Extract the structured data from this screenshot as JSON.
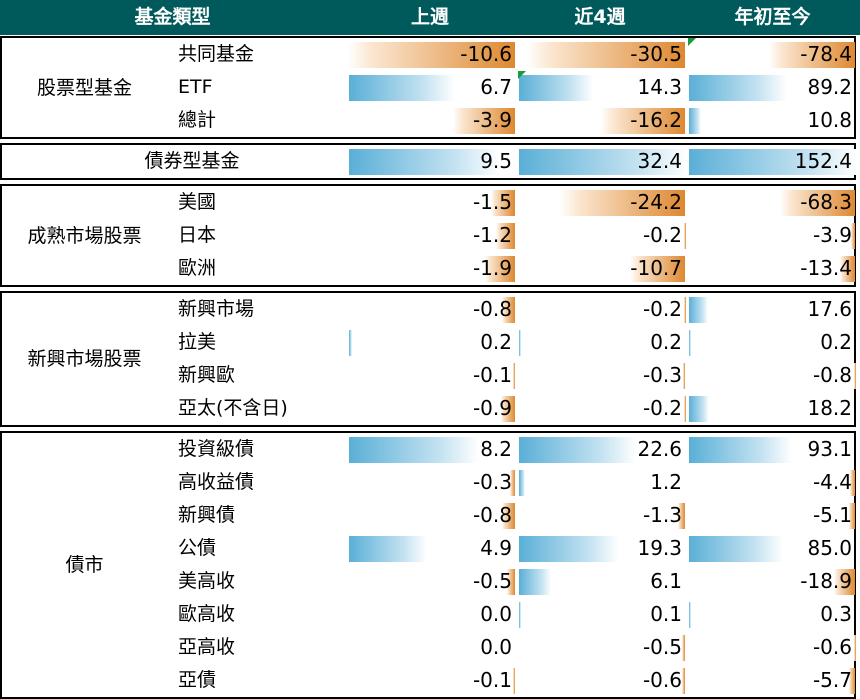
{
  "header": {
    "category": "基金類型",
    "col1": "上週",
    "col2": "近4週",
    "col3": "年初至今"
  },
  "colors": {
    "header_bg": "#005a5b",
    "negative_bar": "#dd8830",
    "positive_bar": "#5aafd7",
    "flag": "#1a9a38"
  },
  "groups": [
    {
      "label": "股票型基金",
      "rows": [
        {
          "name": "共同基金",
          "v1": "-10.6",
          "v2": "-30.5",
          "v3": "-78.4",
          "flag3": true
        },
        {
          "name": "ETF",
          "v1": "6.7",
          "v2": "14.3",
          "v3": "89.2",
          "flag2": true
        },
        {
          "name": "總計",
          "v1": "-3.9",
          "v2": "-16.2",
          "v3": "10.8"
        }
      ]
    },
    {
      "label": "債券型基金",
      "single": true,
      "rows": [
        {
          "name": "",
          "v1": "9.5",
          "v2": "32.4",
          "v3": "152.4"
        }
      ]
    },
    {
      "label": "成熟市場股票",
      "rows": [
        {
          "name": "美國",
          "v1": "-1.5",
          "v2": "-24.2",
          "v3": "-68.3"
        },
        {
          "name": "日本",
          "v1": "-1.2",
          "v2": "-0.2",
          "v3": "-3.9"
        },
        {
          "name": "歐洲",
          "v1": "-1.9",
          "v2": "-10.7",
          "v3": "-13.4"
        }
      ]
    },
    {
      "label": "新興市場股票",
      "rows": [
        {
          "name": "新興市場",
          "v1": "-0.8",
          "v2": "-0.2",
          "v3": "17.6"
        },
        {
          "name": "拉美",
          "v1": "0.2",
          "v2": "0.2",
          "v3": "0.2"
        },
        {
          "name": "新興歐",
          "v1": "-0.1",
          "v2": "-0.3",
          "v3": "-0.8"
        },
        {
          "name": "亞太(不含日)",
          "v1": "-0.9",
          "v2": "-0.2",
          "v3": "18.2"
        }
      ]
    },
    {
      "label": "債市",
      "rows": [
        {
          "name": "投資級債",
          "v1": "8.2",
          "v2": "22.6",
          "v3": "93.1"
        },
        {
          "name": "高收益債",
          "v1": "-0.3",
          "v2": "1.2",
          "v3": "-4.4"
        },
        {
          "name": "新興債",
          "v1": "-0.8",
          "v2": "-1.3",
          "v3": "-5.1"
        },
        {
          "name": "公債",
          "v1": "4.9",
          "v2": "19.3",
          "v3": "85.0"
        },
        {
          "name": "美高收",
          "v1": "-0.5",
          "v2": "6.1",
          "v3": "-18.9"
        },
        {
          "name": "歐高收",
          "v1": "0.0",
          "v2": "0.1",
          "v3": "0.3"
        },
        {
          "name": "亞高收",
          "v1": "0.0",
          "v2": "-0.5",
          "v3": "-0.6"
        },
        {
          "name": "亞債",
          "v1": "-0.1",
          "v2": "-0.6",
          "v3": "-5.7"
        }
      ]
    }
  ]
}
